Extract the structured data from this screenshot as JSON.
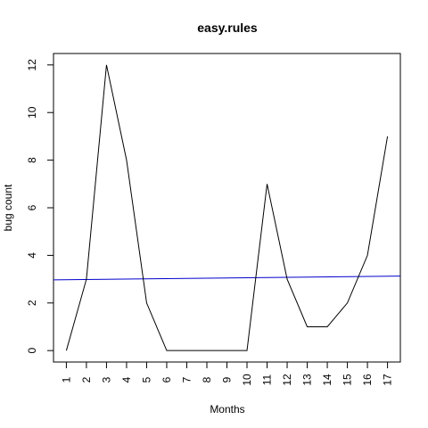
{
  "chart_data": {
    "type": "line",
    "title": "easy.rules",
    "xlabel": "Months",
    "ylabel": "bug count",
    "x": [
      1,
      2,
      3,
      4,
      5,
      6,
      7,
      8,
      9,
      10,
      11,
      12,
      13,
      14,
      15,
      16,
      17
    ],
    "x_tick_labels": [
      "1",
      "2",
      "3",
      "4",
      "5",
      "6",
      "7",
      "8",
      "9",
      "10",
      "11",
      "12",
      "13",
      "14",
      "15",
      "16",
      "17"
    ],
    "y_ticks": [
      0,
      2,
      4,
      6,
      8,
      10,
      12
    ],
    "xlim": [
      0.36,
      17.64
    ],
    "ylim": [
      -0.48,
      12.48
    ],
    "grid": false,
    "series": [
      {
        "values": [
          0,
          3,
          12,
          8,
          2,
          0,
          0,
          0,
          0,
          0,
          7,
          3,
          1,
          1,
          2,
          4,
          9
        ],
        "color": "#000000"
      }
    ],
    "trend_line": {
      "x": [
        0.36,
        17.64
      ],
      "y": [
        2.97,
        3.13
      ],
      "color": "#0000CD"
    }
  }
}
